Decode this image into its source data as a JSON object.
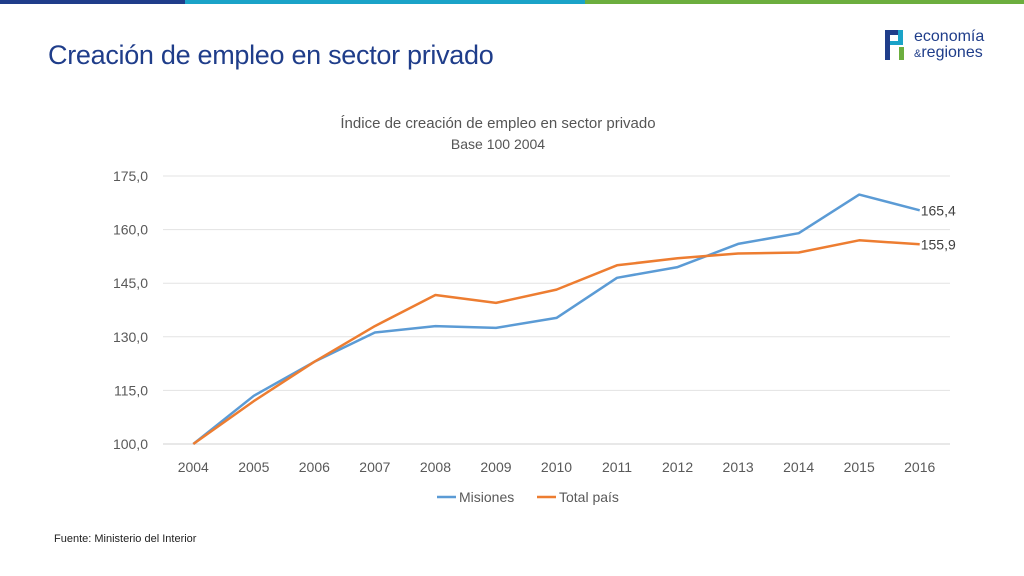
{
  "slide": {
    "title": "Creación de empleo en sector privado",
    "source": "Fuente: Ministerio del Interior",
    "logo": {
      "line1": "economía",
      "amp": "&",
      "line2": "regiones"
    },
    "colors": {
      "title": "#1f3d8a",
      "bar_blue": "#1f3d8a",
      "bar_cyan": "#1aa3c8",
      "bar_green": "#6cae3e"
    }
  },
  "chart_data": {
    "type": "line",
    "title": "Índice de creación de empleo en sector privado",
    "subtitle": "Base 100 2004",
    "x": [
      "2004",
      "2005",
      "2006",
      "2007",
      "2008",
      "2009",
      "2010",
      "2011",
      "2012",
      "2013",
      "2014",
      "2015",
      "2016"
    ],
    "ylim": [
      100,
      175
    ],
    "yticks": [
      "100,0",
      "115,0",
      "130,0",
      "145,0",
      "160,0",
      "175,0"
    ],
    "grid": true,
    "legend_position": "bottom",
    "series": [
      {
        "name": "Misiones",
        "color": "#5b9bd5",
        "values": [
          100.0,
          113.5,
          123.0,
          131.2,
          133.0,
          132.5,
          135.3,
          146.5,
          149.5,
          156.0,
          159.0,
          169.8,
          165.4
        ],
        "end_label": "165,4"
      },
      {
        "name": "Total país",
        "color": "#ed7d31",
        "values": [
          100.0,
          112.0,
          123.0,
          133.0,
          141.7,
          139.5,
          143.2,
          150.0,
          152.0,
          153.3,
          153.6,
          157.0,
          155.9
        ],
        "end_label": "155,9"
      }
    ]
  }
}
